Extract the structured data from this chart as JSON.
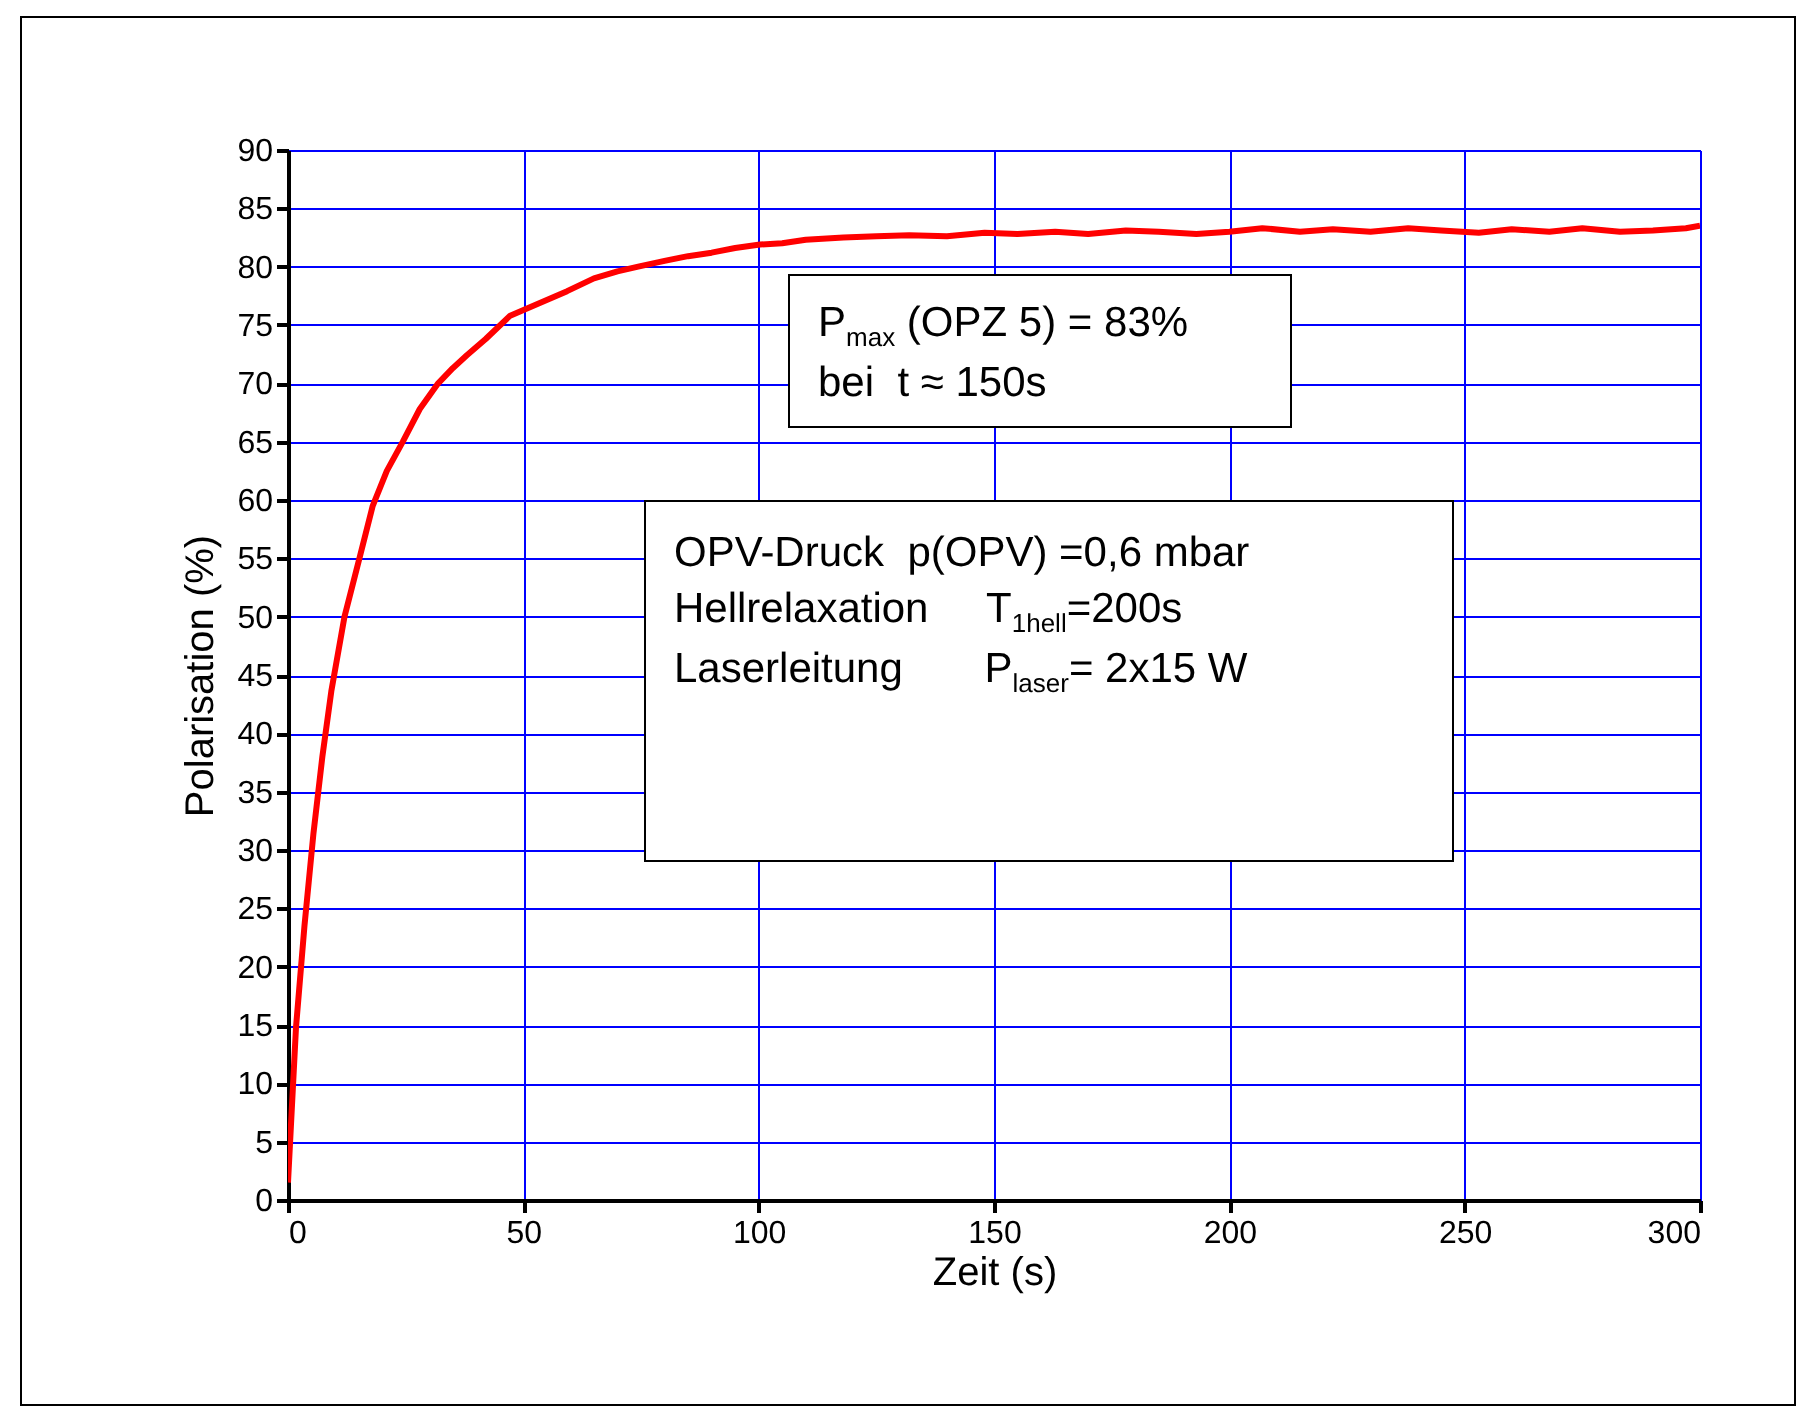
{
  "chart_data": {
    "type": "line",
    "xlabel": "Zeit (s)",
    "ylabel": "Polarisation (%)",
    "xlim": [
      0,
      300
    ],
    "ylim": [
      0,
      90
    ],
    "xticks": [
      0,
      50,
      100,
      150,
      200,
      250,
      300
    ],
    "yticks": [
      0,
      5,
      10,
      15,
      20,
      25,
      30,
      35,
      40,
      45,
      50,
      55,
      60,
      65,
      70,
      75,
      80,
      85,
      90
    ],
    "grid": true,
    "legend": false,
    "line_style": "solid",
    "marker": "none",
    "x": [
      0,
      1.7,
      3.5,
      5.4,
      7.3,
      9.2,
      12,
      15.3,
      18,
      21,
      24.4,
      28,
      31.9,
      35,
      38,
      42,
      47.2,
      53,
      59.3,
      65,
      70,
      74.4,
      80,
      85,
      90,
      95,
      100.3,
      105,
      110,
      118,
      125,
      132,
      140,
      148,
      155,
      163,
      170,
      178,
      185,
      193,
      200,
      207,
      215,
      222,
      230,
      238,
      245,
      253,
      260,
      268,
      275,
      283,
      290,
      297,
      300
    ],
    "series": [
      {
        "color": "#ff0000",
        "values": [
          1.5,
          14.8,
          23.5,
          31.4,
          38,
          43.6,
          50,
          55.2,
          59.5,
          62.5,
          65,
          67.8,
          70,
          71.3,
          72.4,
          73.8,
          75.8,
          76.8,
          77.9,
          79,
          79.6,
          80,
          80.5,
          80.9,
          81.2,
          81.6,
          81.9,
          82,
          82.3,
          82.5,
          82.6,
          82.7,
          82.6,
          82.9,
          82.8,
          83,
          82.8,
          83.1,
          83,
          82.8,
          83,
          83.3,
          83,
          83.2,
          83,
          83.3,
          83.1,
          82.9,
          83.2,
          83,
          83.3,
          83,
          83.1,
          83.3,
          83.5
        ]
      }
    ],
    "annotations": [
      "P$_{max}$ (OPZ 5) = 83%\nbei  t ≈ 150s",
      "OPV-Druck  p(OPV) =0,6 mbar\nHellrelaxation     T$_{1hell}$=200s\nLaserleitung       P$_{laser}$= 2x15 W"
    ]
  }
}
